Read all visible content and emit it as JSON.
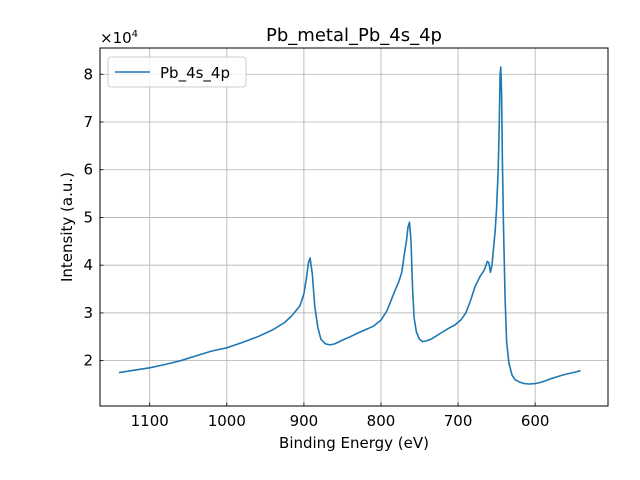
{
  "chart_data": {
    "type": "line",
    "title": "Pb_metal_Pb_4s_4p",
    "xlabel": "Binding Energy (eV)",
    "ylabel": "Intensity (a.u.)",
    "y_multiplier_label": "×10",
    "y_multiplier_exponent": "4",
    "x_reversed": true,
    "xlim": [
      1164.5,
      505.5
    ],
    "ylim": [
      10500,
      85500
    ],
    "x_ticks": [
      1100,
      1000,
      900,
      800,
      700,
      600
    ],
    "x_tick_labels": [
      "1100",
      "1000",
      "900",
      "800",
      "700",
      "600"
    ],
    "y_ticks": [
      20000,
      30000,
      40000,
      50000,
      60000,
      70000,
      80000
    ],
    "y_tick_labels": [
      "2",
      "3",
      "4",
      "5",
      "6",
      "7",
      "8"
    ],
    "grid": true,
    "legend_position": "top-left",
    "series": [
      {
        "name": "Pb_4s_4p",
        "color": "#1f77b4",
        "x": [
          1140,
          1120,
          1100,
          1080,
          1060,
          1040,
          1020,
          1000,
          980,
          960,
          940,
          925,
          915,
          905,
          900,
          897,
          894,
          892,
          889,
          886,
          882,
          878,
          872,
          866,
          860,
          850,
          840,
          830,
          820,
          810,
          800,
          792,
          786,
          781,
          777,
          773,
          770,
          767,
          765,
          763,
          761,
          759,
          757,
          754,
          750,
          746,
          740,
          734,
          728,
          720,
          712,
          704,
          696,
          690,
          684,
          678,
          672,
          666,
          662,
          660,
          658,
          656,
          654,
          652,
          650,
          648,
          646.5,
          645.5,
          644.5,
          643.5,
          642.5,
          641,
          639,
          637,
          634,
          630,
          626,
          620,
          614,
          608,
          600,
          594,
          588,
          580,
          572,
          564,
          556,
          548,
          541
        ],
        "y": [
          17500,
          18000,
          18500,
          19200,
          20000,
          21000,
          22000,
          22700,
          23800,
          25000,
          26500,
          28000,
          29500,
          31500,
          34000,
          37000,
          40500,
          41500,
          38000,
          31500,
          27000,
          24500,
          23500,
          23300,
          23500,
          24300,
          25000,
          25800,
          26500,
          27200,
          28500,
          30500,
          33000,
          35000,
          36500,
          38500,
          42000,
          45000,
          48000,
          49000,
          45000,
          35000,
          29000,
          26000,
          24500,
          24000,
          24200,
          24600,
          25200,
          26000,
          26800,
          27500,
          28600,
          30000,
          32500,
          35500,
          37500,
          39000,
          40800,
          40500,
          38500,
          40000,
          43500,
          47000,
          52000,
          60000,
          70000,
          80000,
          81500,
          76000,
          62000,
          48000,
          33000,
          24000,
          19500,
          17000,
          16000,
          15500,
          15200,
          15100,
          15200,
          15400,
          15700,
          16200,
          16600,
          17000,
          17300,
          17600,
          17900
        ]
      }
    ]
  }
}
